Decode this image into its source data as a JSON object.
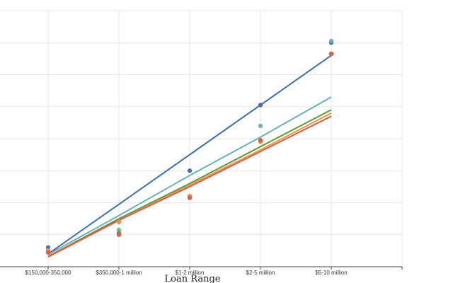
{
  "chart_data": {
    "type": "scatter",
    "xlabel": "Loan Range",
    "categories": [
      "$150,000-350,000",
      "$350,000-1 million",
      "$1-2 million",
      "$2-5 million",
      "$5-10 million"
    ],
    "grid": true,
    "series": [
      {
        "color": "#3f6ea8",
        "points": [
          0.6,
          1.4,
          3.0,
          5.05,
          7.0
        ],
        "trend": [
          0.4,
          1.95,
          3.5,
          5.05,
          6.6
        ]
      },
      {
        "color": "#6ab0b8",
        "points": [
          0.5,
          1.15,
          2.2,
          4.4,
          7.05
        ],
        "trend": [
          0.38,
          1.6,
          2.85,
          4.05,
          5.3
        ]
      },
      {
        "color": "#5a9a42",
        "points": [
          0.45,
          1.05,
          2.2,
          3.95,
          6.65
        ],
        "trend": [
          0.32,
          1.5,
          2.6,
          3.75,
          4.9
        ]
      },
      {
        "color": "#e89a3c",
        "points": [
          0.5,
          1.4,
          2.2,
          3.9,
          6.65
        ],
        "trend": [
          0.3,
          1.45,
          2.55,
          3.65,
          4.8
        ]
      },
      {
        "color": "#e05a4a",
        "points": [
          0.45,
          1.0,
          2.15,
          3.95,
          6.65
        ],
        "trend": [
          0.32,
          1.45,
          2.5,
          3.6,
          4.7
        ]
      }
    ]
  }
}
